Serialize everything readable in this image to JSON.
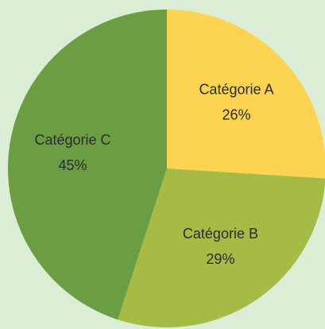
{
  "chart_data": {
    "type": "pie",
    "categories": [
      "Catégorie A",
      "Catégorie B",
      "Catégorie C"
    ],
    "values": [
      26,
      29,
      45
    ],
    "value_labels": [
      "26%",
      "29%",
      "45%"
    ],
    "colors": [
      "#fcd451",
      "#a6bb45",
      "#6b9e43"
    ]
  }
}
